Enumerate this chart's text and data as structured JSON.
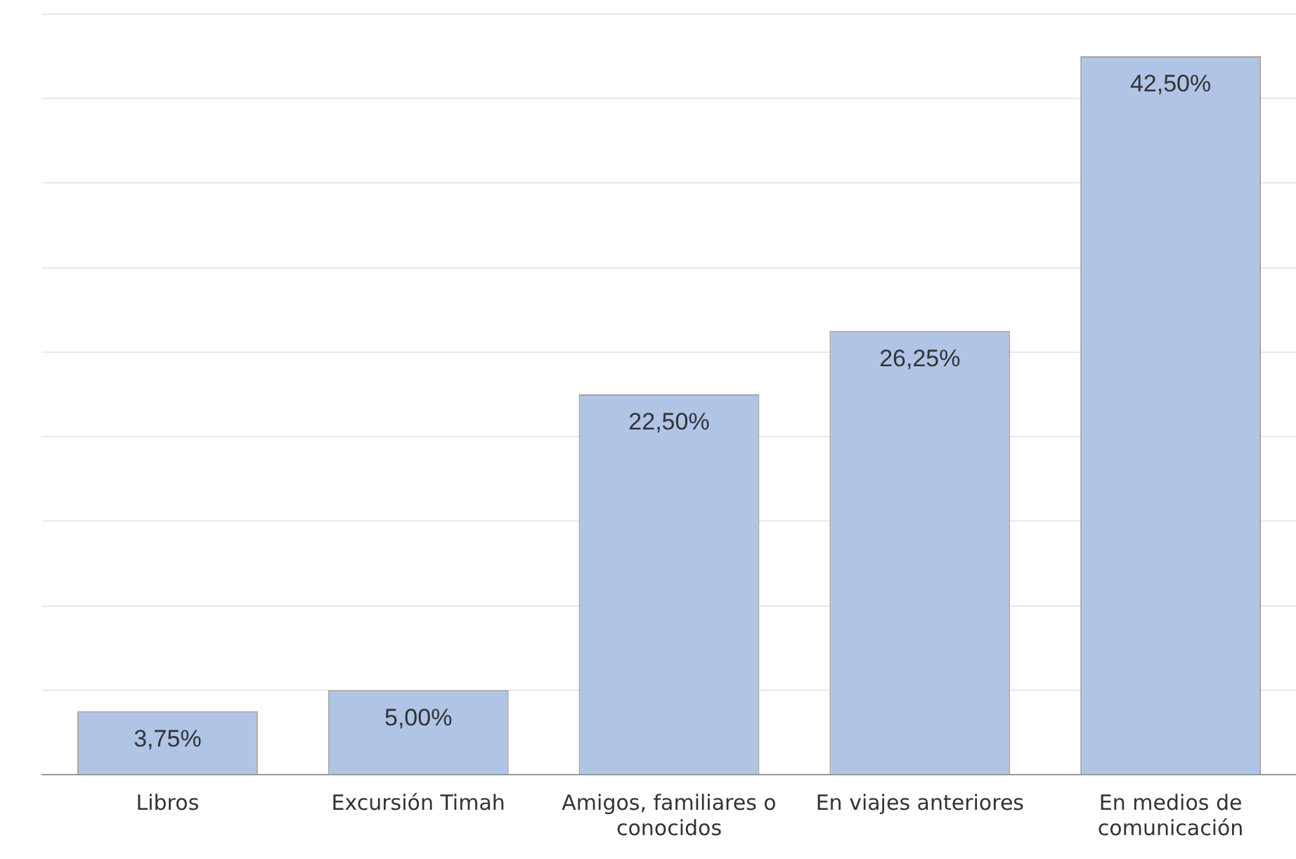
{
  "chart_data": {
    "type": "bar",
    "categories": [
      "Libros",
      "Excursión Timah",
      "Amigos, familiares o conocidos",
      "En viajes anteriores",
      "En medios de comunicación"
    ],
    "values": [
      3.75,
      5.0,
      22.5,
      26.25,
      42.5
    ],
    "color": "#b0c4e6",
    "value_labels": [
      "3,75%",
      "5,00%",
      "22,50%",
      "26,25%",
      "42,50%"
    ],
    "tick_labels": "x",
    "grid": "y",
    "legend": false
  }
}
